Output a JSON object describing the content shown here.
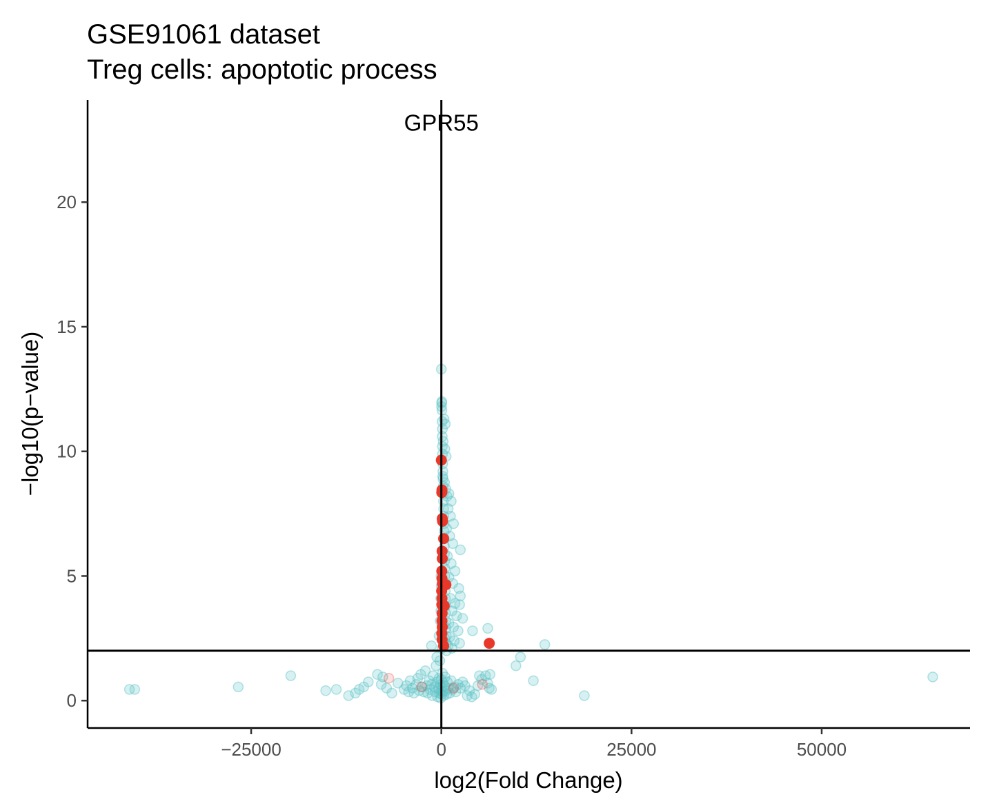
{
  "chart_data": {
    "type": "scatter",
    "title": "GSE91061 dataset",
    "subtitle": "Treg cells: apoptotic process",
    "xlabel": "log2(Fold Change)",
    "ylabel": "−log10(p−value)",
    "xlim": [
      -46500,
      69500
    ],
    "ylim": [
      -1.1,
      24.1
    ],
    "x_ticks": [
      {
        "value": -25000,
        "label": "−25000"
      },
      {
        "value": 0,
        "label": "0"
      },
      {
        "value": 25000,
        "label": "25000"
      },
      {
        "value": 50000,
        "label": "50000"
      }
    ],
    "y_ticks": [
      {
        "value": 0,
        "label": "0"
      },
      {
        "value": 5,
        "label": "5"
      },
      {
        "value": 10,
        "label": "10"
      },
      {
        "value": 15,
        "label": "15"
      },
      {
        "value": 20,
        "label": "20"
      }
    ],
    "grid": false,
    "legend": "none",
    "reference_lines": {
      "vertical_x": 0,
      "horizontal_y": 2
    },
    "annotations": [
      {
        "label": "GPR55",
        "x": 0,
        "y": 23.2
      }
    ],
    "colors": {
      "background_points": "#5ec4c8",
      "highlight_points": "#e8382a",
      "axis": "#000000"
    },
    "series": [
      {
        "role": "background",
        "points": [
          [
            -41000,
            0.45
          ],
          [
            -40300,
            0.45
          ],
          [
            -26700,
            0.55
          ],
          [
            -19800,
            1.0
          ],
          [
            -15200,
            0.4
          ],
          [
            -13800,
            0.45
          ],
          [
            -12200,
            0.2
          ],
          [
            -11300,
            0.3
          ],
          [
            -10800,
            0.45
          ],
          [
            -10200,
            0.55
          ],
          [
            -9600,
            0.75
          ],
          [
            -8400,
            1.05
          ],
          [
            -7900,
            0.65
          ],
          [
            -7700,
            0.95
          ],
          [
            -7200,
            0.5
          ],
          [
            -6500,
            0.3
          ],
          [
            -5700,
            0.7
          ],
          [
            -4900,
            0.45
          ],
          [
            -4600,
            0.6
          ],
          [
            -4300,
            0.35
          ],
          [
            -4100,
            0.8
          ],
          [
            -3800,
            0.5
          ],
          [
            -3600,
            0.3
          ],
          [
            -3300,
            0.65
          ],
          [
            -3100,
            0.9
          ],
          [
            -2900,
            0.4
          ],
          [
            -2700,
            1.05
          ],
          [
            -2500,
            0.55
          ],
          [
            -2300,
            0.35
          ],
          [
            -2100,
            1.2
          ],
          [
            -1900,
            0.6
          ],
          [
            -1800,
            0.3
          ],
          [
            -1600,
            0.8
          ],
          [
            -1500,
            0.45
          ],
          [
            -1300,
            0.65
          ],
          [
            -1200,
            0.2
          ],
          [
            -1100,
            1.0
          ],
          [
            -900,
            0.55
          ],
          [
            -800,
            0.35
          ],
          [
            -700,
            1.4
          ],
          [
            -600,
            0.75
          ],
          [
            -500,
            0.15
          ],
          [
            -400,
            0.5
          ],
          [
            -300,
            0.9
          ],
          [
            -250,
            0.3
          ],
          [
            -200,
            1.6
          ],
          [
            -150,
            0.65
          ],
          [
            -100,
            0.1
          ],
          [
            -50,
            0.4
          ],
          [
            0,
            0.85
          ],
          [
            50,
            0.25
          ],
          [
            100,
            0.55
          ],
          [
            150,
            1.1
          ],
          [
            200,
            0.35
          ],
          [
            250,
            0.7
          ],
          [
            300,
            0.2
          ],
          [
            400,
            0.6
          ],
          [
            500,
            0.95
          ],
          [
            600,
            0.4
          ],
          [
            700,
            0.25
          ],
          [
            800,
            0.75
          ],
          [
            900,
            0.5
          ],
          [
            1100,
            0.3
          ],
          [
            1300,
            0.8
          ],
          [
            1500,
            0.45
          ],
          [
            1700,
            0.55
          ],
          [
            1900,
            0.35
          ],
          [
            2200,
            0.65
          ],
          [
            2500,
            0.5
          ],
          [
            2800,
            0.75
          ],
          [
            3100,
            0.6
          ],
          [
            3400,
            0.2
          ],
          [
            3700,
            0.4
          ],
          [
            4000,
            0.15
          ],
          [
            4400,
            0.25
          ],
          [
            4800,
            0.6
          ],
          [
            5000,
            1.0
          ],
          [
            5300,
            0.85
          ],
          [
            5800,
            1.0
          ],
          [
            6100,
            0.7
          ],
          [
            6300,
            0.5
          ],
          [
            6400,
            1.05
          ],
          [
            6600,
            0.45
          ],
          [
            9800,
            1.4
          ],
          [
            10400,
            1.75
          ],
          [
            12100,
            0.8
          ],
          [
            13600,
            2.25
          ],
          [
            18800,
            0.2
          ],
          [
            64600,
            0.95
          ],
          [
            -1300,
            2.2
          ],
          [
            -600,
            1.75
          ],
          [
            -300,
            2.6
          ],
          [
            -150,
            3.2
          ],
          [
            -80,
            4.1
          ],
          [
            -60,
            3.6
          ],
          [
            -40,
            5.0
          ],
          [
            -20,
            4.6
          ],
          [
            0,
            13.3
          ],
          [
            20,
            11.8
          ],
          [
            40,
            11.95
          ],
          [
            60,
            12.0
          ],
          [
            80,
            11.65
          ],
          [
            100,
            11.2
          ],
          [
            120,
            10.6
          ],
          [
            140,
            10.2
          ],
          [
            160,
            9.9
          ],
          [
            180,
            9.5
          ],
          [
            200,
            9.2
          ],
          [
            220,
            8.9
          ],
          [
            240,
            8.6
          ],
          [
            260,
            8.3
          ],
          [
            280,
            8.0
          ],
          [
            300,
            7.7
          ],
          [
            320,
            7.4
          ],
          [
            340,
            7.1
          ],
          [
            360,
            6.8
          ],
          [
            380,
            6.5
          ],
          [
            400,
            6.2
          ],
          [
            420,
            5.9
          ],
          [
            440,
            5.6
          ],
          [
            460,
            5.3
          ],
          [
            480,
            5.0
          ],
          [
            500,
            4.7
          ],
          [
            520,
            4.4
          ],
          [
            540,
            4.1
          ],
          [
            560,
            3.8
          ],
          [
            580,
            3.5
          ],
          [
            600,
            3.2
          ],
          [
            620,
            2.9
          ],
          [
            640,
            2.6
          ],
          [
            660,
            2.3
          ],
          [
            680,
            2.0
          ],
          [
            140,
            10.9
          ],
          [
            360,
            11.3
          ],
          [
            520,
            11.1
          ],
          [
            240,
            10.4
          ],
          [
            460,
            10.1
          ],
          [
            640,
            9.8
          ],
          [
            180,
            9.0
          ],
          [
            420,
            8.75
          ],
          [
            580,
            8.5
          ],
          [
            760,
            8.2
          ],
          [
            1000,
            8.3
          ],
          [
            1300,
            8.0
          ],
          [
            900,
            7.7
          ],
          [
            1200,
            7.4
          ],
          [
            1600,
            7.1
          ],
          [
            700,
            6.9
          ],
          [
            1100,
            6.6
          ],
          [
            1500,
            6.3
          ],
          [
            2500,
            6.05
          ],
          [
            800,
            5.8
          ],
          [
            1300,
            5.5
          ],
          [
            1800,
            5.2
          ],
          [
            1000,
            4.95
          ],
          [
            1500,
            4.7
          ],
          [
            2300,
            4.5
          ],
          [
            2500,
            4.2
          ],
          [
            1200,
            4.1
          ],
          [
            1800,
            3.9
          ],
          [
            2400,
            3.85
          ],
          [
            1400,
            3.6
          ],
          [
            2000,
            3.4
          ],
          [
            2800,
            3.3
          ],
          [
            1000,
            3.1
          ],
          [
            1600,
            2.95
          ],
          [
            2200,
            2.8
          ],
          [
            4100,
            2.8
          ],
          [
            6100,
            2.9
          ],
          [
            1100,
            2.55
          ],
          [
            1700,
            2.4
          ],
          [
            2400,
            2.3
          ],
          [
            900,
            2.2
          ],
          [
            1400,
            2.1
          ],
          [
            300,
            3.0
          ],
          [
            150,
            2.7
          ],
          [
            450,
            2.5
          ],
          [
            250,
            2.35
          ],
          [
            80,
            2.1
          ]
        ]
      },
      {
        "role": "highlight",
        "points": [
          [
            0,
            9.65
          ],
          [
            80,
            8.45
          ],
          [
            60,
            8.35
          ],
          [
            120,
            7.3
          ],
          [
            160,
            7.2
          ],
          [
            300,
            6.5
          ],
          [
            100,
            6.0
          ],
          [
            120,
            5.7
          ],
          [
            60,
            5.2
          ],
          [
            80,
            4.9
          ],
          [
            140,
            4.7
          ],
          [
            600,
            4.65
          ],
          [
            40,
            4.4
          ],
          [
            80,
            4.1
          ],
          [
            60,
            3.85
          ],
          [
            380,
            3.8
          ],
          [
            100,
            3.5
          ],
          [
            80,
            3.2
          ],
          [
            120,
            2.95
          ],
          [
            60,
            2.7
          ],
          [
            100,
            2.45
          ],
          [
            300,
            2.2
          ],
          [
            6300,
            2.3
          ]
        ]
      },
      {
        "role": "highlight-faint",
        "points": [
          [
            -6900,
            0.9
          ],
          [
            5400,
            0.65
          ],
          [
            -2600,
            0.55
          ],
          [
            1600,
            0.5
          ]
        ]
      }
    ]
  }
}
